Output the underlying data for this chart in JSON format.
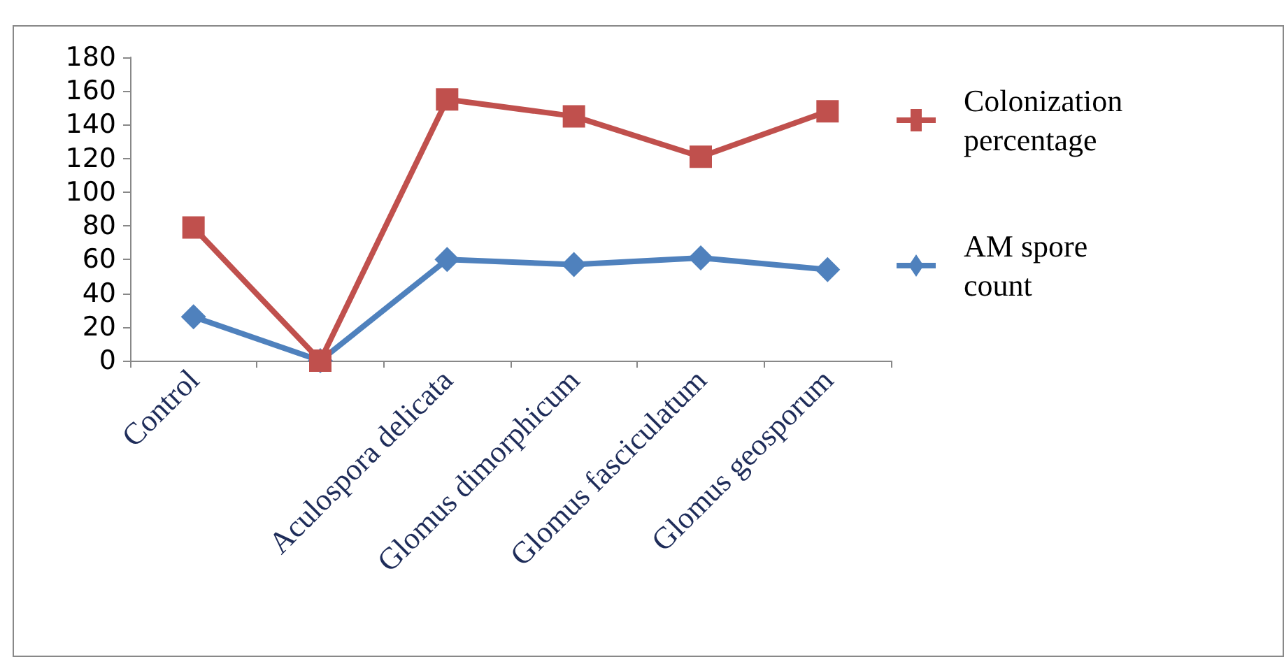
{
  "chart_data": {
    "type": "line",
    "categories": [
      "Control",
      null,
      "Aculospora delicata",
      "Glomus dimorphicum",
      "Glomus fasciculatum",
      "Glomus geosporum"
    ],
    "series": [
      {
        "name": "AM spore count",
        "color": "#4f81bd",
        "marker": "diamond",
        "values": [
          26,
          0,
          60,
          57,
          61,
          54
        ]
      },
      {
        "name": "Colonization percentage",
        "color": "#c0504d",
        "marker": "square",
        "values": [
          79,
          0,
          155,
          145,
          121,
          148
        ]
      }
    ],
    "ylim": [
      0,
      180
    ],
    "yticks": [
      0,
      20,
      40,
      60,
      80,
      100,
      120,
      140,
      160,
      180
    ],
    "grid": false,
    "legend": "right"
  }
}
